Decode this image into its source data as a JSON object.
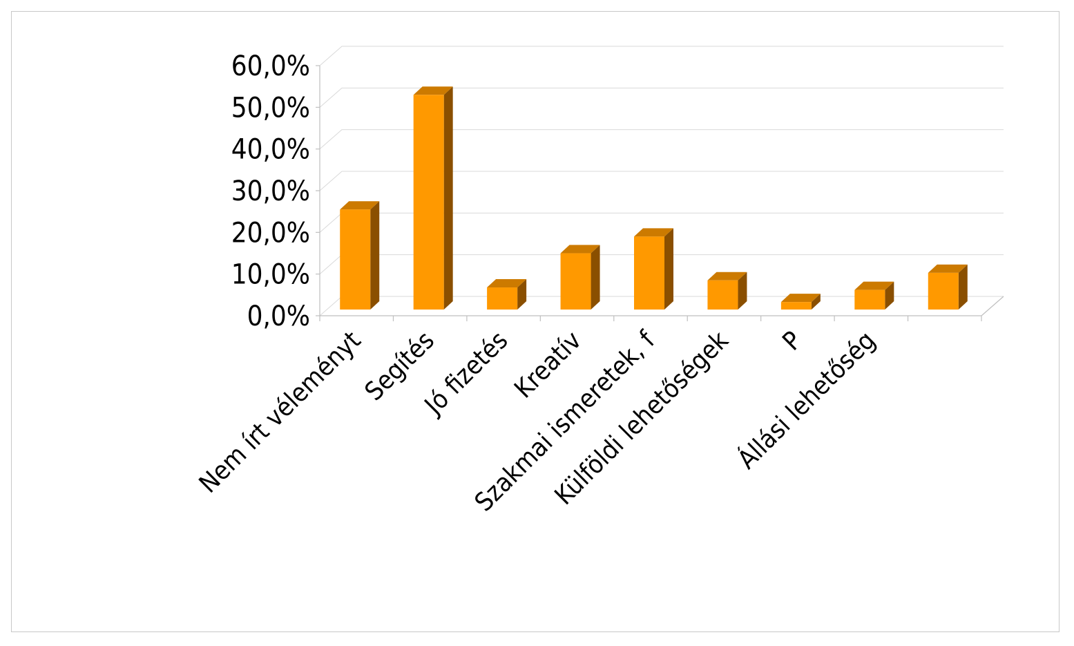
{
  "chart_data": {
    "type": "bar",
    "style": "3d-column",
    "categories": [
      "Nem írt véleményt",
      "Segítés",
      "Jó fizetés",
      "Kreatív",
      "Szakmai ismeretek, f",
      "Külföldi lehetőségek",
      "P",
      "Állási lehetőség",
      ""
    ],
    "series": [
      {
        "name": "",
        "values": [
          24.0,
          51.5,
          5.3,
          13.5,
          17.5,
          7.0,
          1.8,
          4.7,
          8.8
        ]
      }
    ],
    "yticks": [
      "0,0%",
      "10,0%",
      "20,0%",
      "30,0%",
      "40,0%",
      "50,0%",
      "60,0%"
    ],
    "ylim": [
      0,
      60
    ],
    "grid": true,
    "legend": "none",
    "title": "",
    "xlabel": "",
    "ylabel": ""
  },
  "colors": {
    "bar_front": "#ff9900",
    "bar_top": "#cc7a00",
    "bar_side": "#8a4f00",
    "grid": "#d9d9d9",
    "axis": "#bfbfbf"
  }
}
